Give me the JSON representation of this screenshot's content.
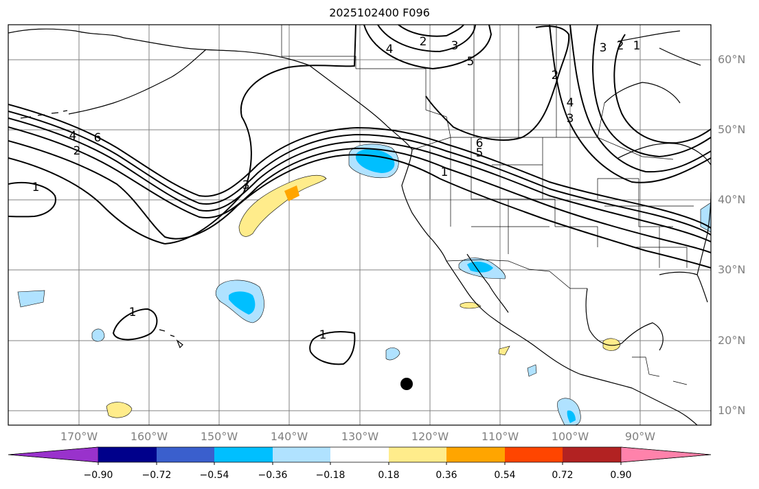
{
  "title": "2025102400 F096",
  "latitude_labels": [
    "60°N",
    "50°N",
    "40°N",
    "30°N",
    "20°N",
    "10°N"
  ],
  "longitude_labels": [
    "170°W",
    "160°W",
    "150°W",
    "140°W",
    "130°W",
    "120°W",
    "110°W",
    "100°W",
    "90°W"
  ],
  "contour_labels": [
    "1",
    "2",
    "4",
    "6",
    "3",
    "1",
    "2",
    "4",
    "3",
    "3",
    "2",
    "5",
    "4",
    "3",
    "2",
    "1",
    "6",
    "5",
    "1",
    "1",
    "1"
  ],
  "colorbar": {
    "tick_labels": [
      "−0.90",
      "−0.72",
      "−0.54",
      "−0.36",
      "−0.18",
      "0.18",
      "0.36",
      "0.54",
      "0.72",
      "0.90"
    ],
    "colors": [
      "#9932cc",
      "#00008b",
      "#3a5fcd",
      "#00bfff",
      "#b0e2ff",
      "#ffffff",
      "#ffec8b",
      "#ffa500",
      "#ff4500",
      "#b22222",
      "#ff82ab"
    ]
  },
  "colors": {
    "light_blue": "#b0e2ff",
    "deep_sky_blue": "#00bfff",
    "light_yellow": "#ffec8b",
    "orange": "#ffa500",
    "grid": "#808080",
    "marker": "#000000"
  }
}
